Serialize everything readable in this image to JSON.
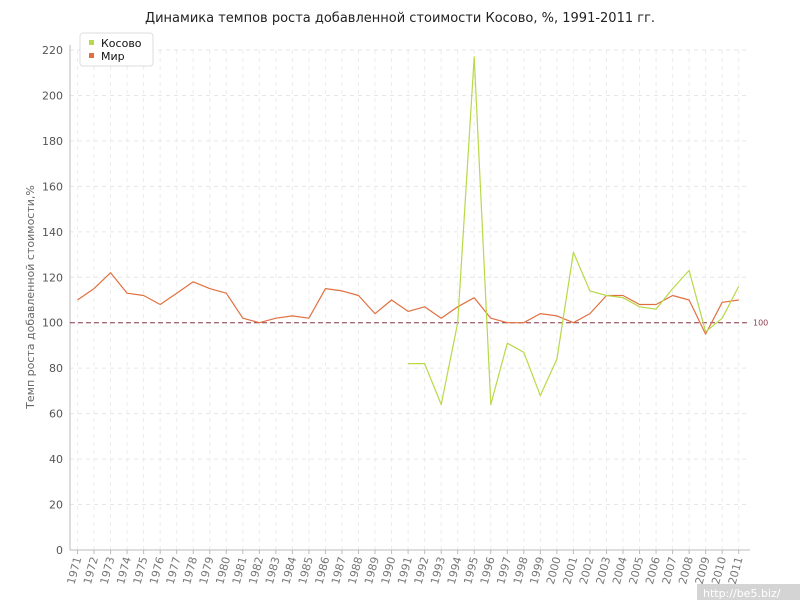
{
  "chart_data": {
    "type": "line",
    "title": "Динамика темпов роста добавленной стоимости Косово, %, 1991-2011 гг.",
    "xlabel": "",
    "ylabel": "Темп роста добавленной стоимости,%",
    "ylim": [
      0,
      220
    ],
    "y_ticks": [
      0,
      20,
      40,
      60,
      80,
      100,
      120,
      140,
      160,
      180,
      200,
      220
    ],
    "grid": true,
    "legend_position": "top-left",
    "x": [
      1971,
      1972,
      1973,
      1974,
      1975,
      1976,
      1977,
      1978,
      1979,
      1980,
      1981,
      1982,
      1983,
      1984,
      1985,
      1986,
      1987,
      1988,
      1989,
      1990,
      1991,
      1992,
      1993,
      1994,
      1995,
      1996,
      1997,
      1998,
      1999,
      2000,
      2001,
      2002,
      2003,
      2004,
      2005,
      2006,
      2007,
      2008,
      2009,
      2010,
      2011
    ],
    "series": [
      {
        "name": "Косово",
        "color": "#b8d948",
        "values": [
          null,
          null,
          null,
          null,
          null,
          null,
          null,
          null,
          null,
          null,
          null,
          null,
          null,
          null,
          null,
          null,
          null,
          null,
          null,
          null,
          82,
          82,
          64,
          100,
          217,
          64,
          91,
          87,
          68,
          84,
          131,
          114,
          112,
          111,
          107,
          106,
          115,
          123,
          96,
          102,
          116
        ]
      },
      {
        "name": "Мир",
        "color": "#e07040",
        "values": [
          110,
          115,
          122,
          113,
          112,
          108,
          113,
          118,
          115,
          113,
          102,
          100,
          102,
          103,
          102,
          115,
          114,
          112,
          104,
          110,
          105,
          107,
          102,
          107,
          111,
          102,
          100,
          100,
          104,
          103,
          100,
          104,
          112,
          112,
          108,
          108,
          112,
          110,
          95,
          109,
          110
        ]
      }
    ],
    "reference_line": {
      "value": 100,
      "label": "100",
      "color": "#8b3a4a"
    }
  },
  "watermark": "http://be5.biz/"
}
